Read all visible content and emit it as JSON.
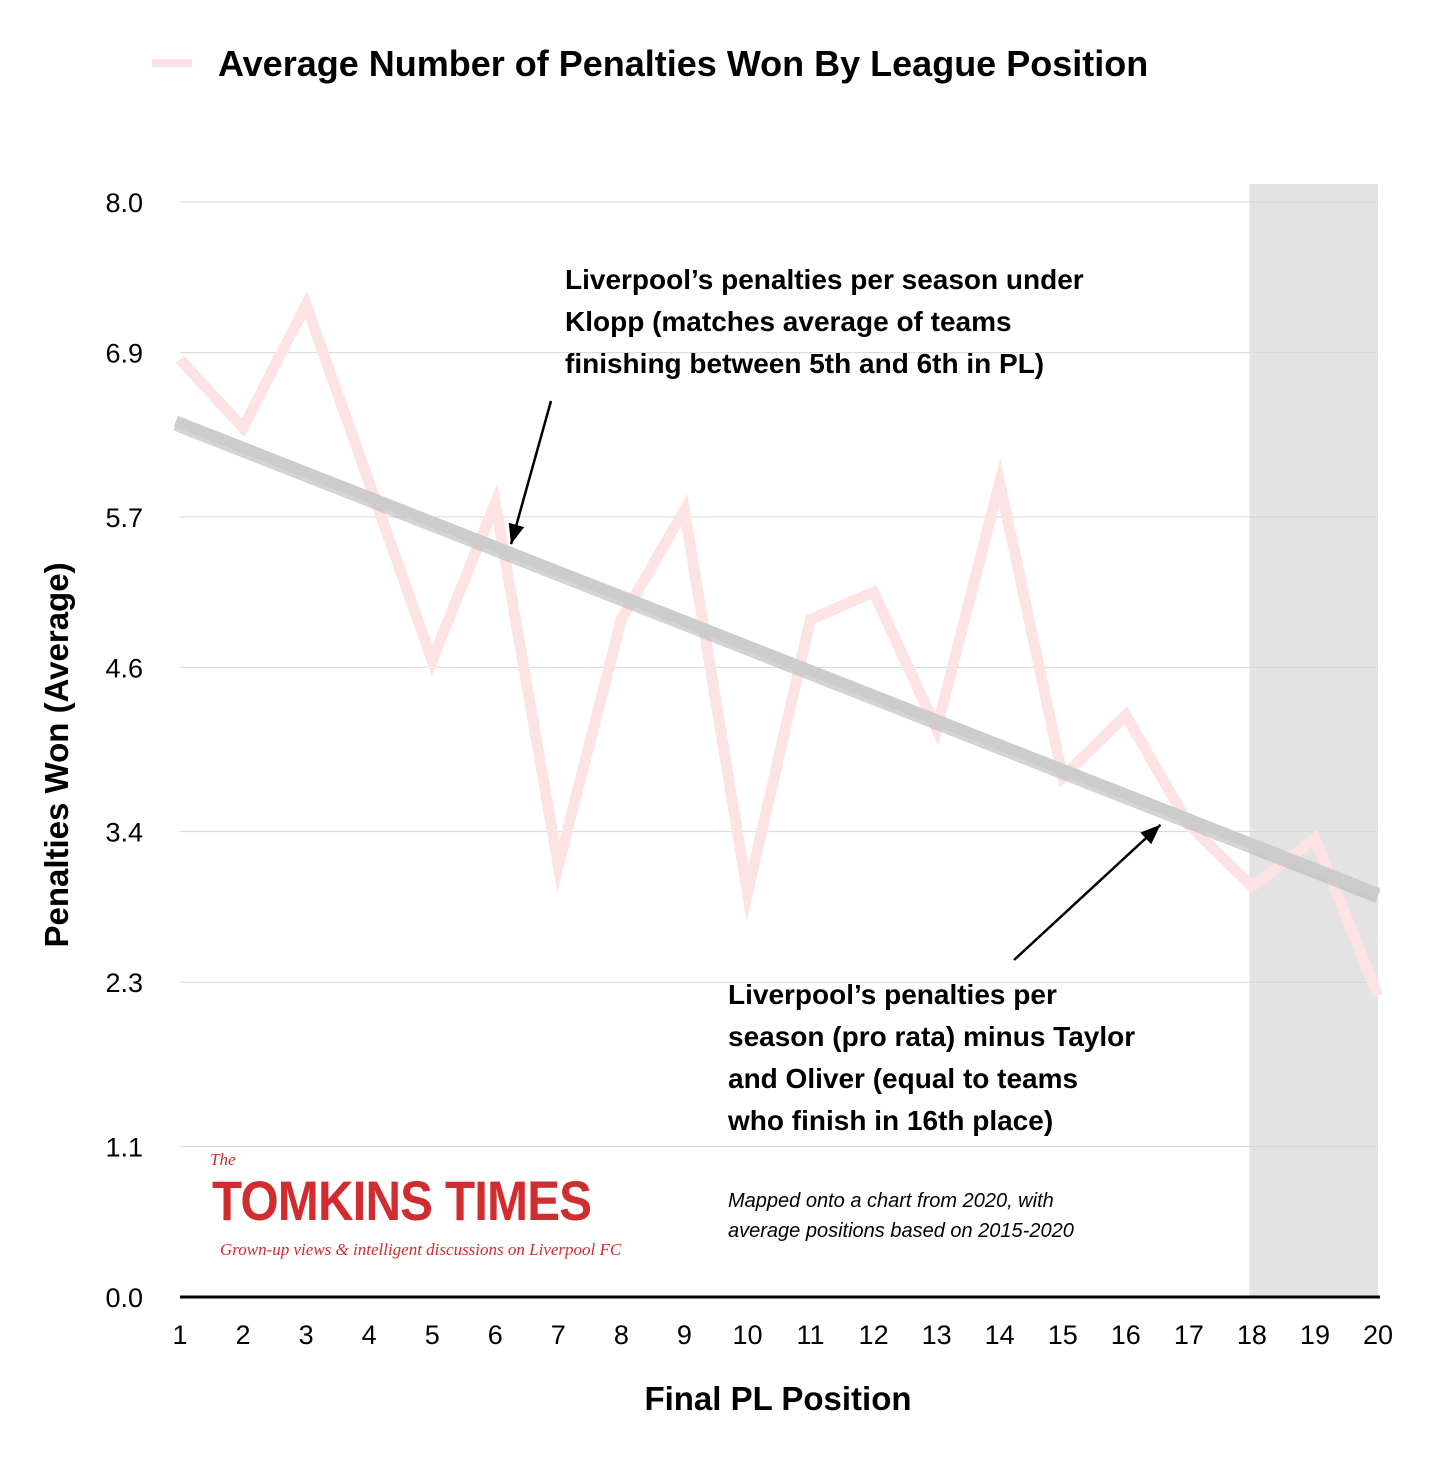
{
  "chart_data": {
    "type": "line",
    "title": "Average Number of Penalties Won By League Position",
    "xlabel": "Final PL Position",
    "ylabel": "Penalties Won (Average)",
    "x": [
      1,
      2,
      3,
      4,
      5,
      6,
      7,
      8,
      9,
      10,
      11,
      12,
      13,
      14,
      15,
      16,
      17,
      18,
      19,
      20
    ],
    "series": [
      {
        "name": "Average Number of Penalties Won By League Position",
        "color": "#fde3e3",
        "values": [
          6.85,
          6.35,
          7.25,
          5.95,
          4.65,
          5.8,
          3.15,
          4.95,
          5.75,
          2.95,
          4.95,
          5.15,
          4.15,
          5.95,
          3.8,
          4.25,
          3.45,
          3.0,
          3.35,
          2.2
        ]
      }
    ],
    "trendline": {
      "start": [
        1,
        6.4
      ],
      "end": [
        20,
        2.95
      ],
      "color": "#cccccc"
    },
    "y_ticks": [
      "0.0",
      "1.1",
      "2.3",
      "3.4",
      "4.6",
      "5.7",
      "6.9",
      "8.0"
    ],
    "y_tick_values": [
      0.0,
      1.1,
      2.3,
      3.4,
      4.6,
      5.7,
      6.9,
      8.0
    ],
    "x_ticks": [
      "1",
      "2",
      "3",
      "4",
      "5",
      "6",
      "7",
      "8",
      "9",
      "10",
      "11",
      "12",
      "13",
      "14",
      "15",
      "16",
      "17",
      "18",
      "19",
      "20"
    ],
    "xlim": [
      1,
      20
    ],
    "ylim": [
      0,
      8.0
    ],
    "grid": true,
    "legend": "top-left",
    "shaded_region": {
      "from": 18,
      "to": 20,
      "color": "#e3e3e3"
    },
    "annotations": [
      {
        "text": "Liverpool’s penalties per season under Klopp (matches average of teams finishing between 5th and 6th in PL)",
        "lines": [
          "Liverpool’s penalties per season under",
          "Klopp (matches average of teams",
          "finishing between 5th and 6th in PL)"
        ],
        "arrow_to": [
          6.25,
          5.5
        ]
      },
      {
        "text": "Liverpool’s penalties per season (pro rata) minus Taylor and Oliver (equal to teams who finish in 16th place)",
        "lines": [
          "Liverpool’s penalties per",
          "season (pro rata) minus Taylor",
          "and Oliver (equal to teams",
          "who finish in 16th place)"
        ],
        "arrow_to": [
          16.55,
          3.45
        ]
      }
    ],
    "note_lines": [
      "Mapped onto a chart from 2020, with",
      "average positions based on 2015-2020"
    ]
  },
  "branding": {
    "the": "The",
    "name": "TOMKINS TIMES",
    "tagline": "Grown-up views & intelligent discussions on Liverpool FC",
    "color": "#d12c2f"
  }
}
